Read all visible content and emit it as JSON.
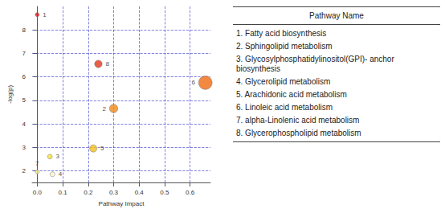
{
  "chart_data": {
    "type": "scatter",
    "x_label": "Pathway Impact",
    "y_label": "-log(p)",
    "labels": [
      "1",
      "2",
      "3",
      "4",
      "5",
      "6",
      "7",
      "8"
    ],
    "x": [
      0.0,
      0.3,
      0.05,
      0.06,
      0.22,
      0.66,
      0.0,
      0.24
    ],
    "values": [
      8.65,
      4.65,
      2.6,
      1.85,
      2.95,
      5.75,
      1.95,
      6.55
    ],
    "colors": [
      "#e41a1c",
      "#f08a1c",
      "#f3e23a",
      "#faf6c8",
      "#f3c01a",
      "#f06a12",
      "#f4f08a",
      "#e2381a"
    ],
    "marker": "circle",
    "xlim": [
      -0.02,
      0.68
    ],
    "xticks": [
      {
        "value": 0,
        "label": "0.0"
      },
      {
        "value": 0.1,
        "label": "0.1"
      },
      {
        "value": 0.2,
        "label": "0.2"
      },
      {
        "value": 0.3,
        "label": "0.3"
      },
      {
        "value": 0.4,
        "label": "0.4"
      },
      {
        "value": 0.5,
        "label": "0.5"
      },
      {
        "value": 0.6,
        "label": "0.6"
      }
    ],
    "ylim": [
      1.5,
      9.0
    ],
    "yticks": [
      2,
      3,
      4,
      5,
      6,
      7,
      8
    ],
    "grid": true
  },
  "table": {
    "header": "Pathway Name",
    "rows": [
      "1. Fatty acid biosynthesis",
      "2. Sphingolipid metabolism",
      "3. Glycosylphosphatidylinositol(GPI)- anchor biosynthesis",
      "4. Glycerolipid metabolism",
      "5. Arachidonic acid metabolism",
      "6. Linoleic acid metabolism",
      "7. alpha-Linolenic acid metabolism",
      "8. Glycerophospholipid metabolism"
    ]
  }
}
